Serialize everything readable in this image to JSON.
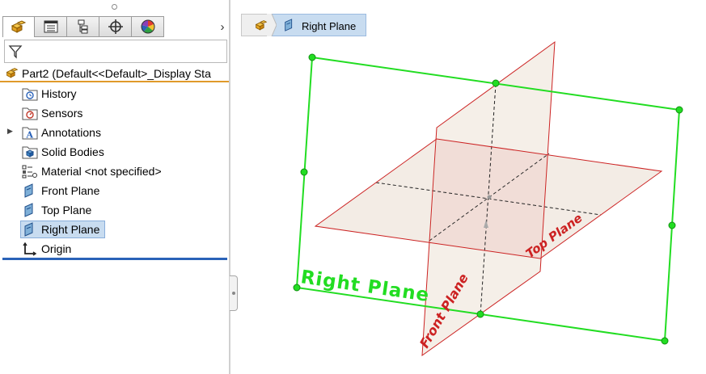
{
  "feature_manager": {
    "tabs": [
      {
        "name": "featuremanager-tree",
        "icon": "part-icon"
      },
      {
        "name": "propertymanager",
        "icon": "property-sheet-icon"
      },
      {
        "name": "configurationmanager",
        "icon": "configuration-icon"
      },
      {
        "name": "dimxpertmanager",
        "icon": "crosshair-icon"
      },
      {
        "name": "displaymanager",
        "icon": "color-wheel-icon"
      }
    ],
    "part_label": "Part2  (Default<<Default>_Display Sta",
    "tree_items": [
      {
        "label": "History",
        "icon": "history-folder-icon",
        "expandable": false,
        "selected": false
      },
      {
        "label": "Sensors",
        "icon": "sensors-folder-icon",
        "expandable": false,
        "selected": false
      },
      {
        "label": "Annotations",
        "icon": "annotations-folder-icon",
        "expandable": true,
        "selected": false
      },
      {
        "label": "Solid Bodies",
        "icon": "solid-bodies-folder-icon",
        "expandable": false,
        "selected": false
      },
      {
        "label": "Material <not specified>",
        "icon": "material-icon",
        "expandable": false,
        "selected": false
      },
      {
        "label": "Front Plane",
        "icon": "plane-icon",
        "expandable": false,
        "selected": false
      },
      {
        "label": "Top Plane",
        "icon": "plane-icon",
        "expandable": false,
        "selected": false
      },
      {
        "label": "Right Plane",
        "icon": "plane-icon",
        "expandable": false,
        "selected": true
      },
      {
        "label": "Origin",
        "icon": "origin-icon",
        "expandable": false,
        "selected": false
      }
    ]
  },
  "breadcrumb": {
    "items": [
      {
        "icon": "part-icon",
        "label": ""
      },
      {
        "icon": "plane-icon",
        "label": "Right Plane"
      }
    ]
  },
  "viewport": {
    "plane_labels": {
      "right": "Right Plane",
      "top": "Top Plane",
      "front": "Front Plane"
    },
    "colors": {
      "selected_plane": "#22dd22",
      "plane_edges": "#cc2222",
      "plane_fill": "#efe6dc",
      "accent": "#2a62b8",
      "part_accent": "#e09a2a"
    }
  }
}
